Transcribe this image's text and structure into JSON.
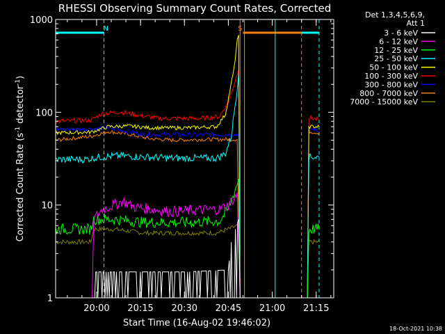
{
  "chart_data": {
    "type": "line",
    "title": "RHESSI Observing Summary Count Rates, Corrected",
    "xlabel": "Start Time (16-Aug-02 19:46:02)",
    "ylabel_main": "Corrected Count Rate (s",
    "ylabel_sup1": "-1",
    "ylabel_mid": " detector",
    "ylabel_sup2": "-1",
    "ylabel_end": ")",
    "yscale": "log",
    "ylim": [
      1,
      1000
    ],
    "xlim_minutes": [
      0,
      95
    ],
    "x_ticks": [
      {
        "label": "20:00",
        "minute": 14
      },
      {
        "label": "20:15",
        "minute": 29
      },
      {
        "label": "20:30",
        "minute": 44
      },
      {
        "label": "20:45",
        "minute": 59
      },
      {
        "label": "21:00",
        "minute": 74
      },
      {
        "label": "21:15",
        "minute": 89
      }
    ],
    "y_ticks": [
      {
        "label": "1",
        "value": 1
      },
      {
        "label": "10",
        "value": 10
      },
      {
        "label": "100",
        "value": 100
      },
      {
        "label": "1000",
        "value": 1000
      }
    ],
    "legend_title": [
      "Det 1,3,4,5,6,9,",
      "Att 1"
    ],
    "legend_position": "top-right",
    "series": [
      {
        "name": "3 - 6 keV",
        "color": "#ffffff",
        "points": [
          [
            0,
            1
          ],
          [
            12.5,
            1
          ],
          [
            13,
            1.9
          ],
          [
            30,
            1.9
          ],
          [
            44,
            1.9
          ],
          [
            59,
            2.0
          ],
          [
            60,
            4.0
          ],
          [
            62.5,
            7.0
          ],
          [
            63,
            1
          ],
          [
            86,
            1
          ],
          [
            95,
            1
          ]
        ]
      },
      {
        "name": "6 - 12 keV",
        "color": "#ff00ff",
        "points": [
          [
            0,
            1
          ],
          [
            12.5,
            1
          ],
          [
            13,
            7.0
          ],
          [
            16,
            9.0
          ],
          [
            20,
            10.0
          ],
          [
            23,
            11.0
          ],
          [
            27,
            9.5
          ],
          [
            33,
            9.0
          ],
          [
            40,
            8.5
          ],
          [
            48,
            8.8
          ],
          [
            56,
            9.0
          ],
          [
            59,
            10.0
          ],
          [
            62,
            13.0
          ],
          [
            63,
            1
          ],
          [
            86,
            1
          ],
          [
            95,
            1
          ]
        ]
      },
      {
        "name": "12 - 25 keV",
        "color": "#00ff00",
        "points": [
          [
            0,
            5.5
          ],
          [
            12,
            5.5
          ],
          [
            13,
            7.0
          ],
          [
            20,
            7.0
          ],
          [
            30,
            6.5
          ],
          [
            45,
            6.5
          ],
          [
            56,
            6.7
          ],
          [
            59,
            9.0
          ],
          [
            62,
            17.0
          ],
          [
            62.5,
            19.0
          ],
          [
            63,
            1
          ],
          [
            86,
            1
          ],
          [
            86.5,
            5.5
          ],
          [
            90,
            5.5
          ]
        ]
      },
      {
        "name": "25 - 50 keV",
        "color": "#00ffff",
        "points": [
          [
            0,
            31
          ],
          [
            10,
            31
          ],
          [
            15,
            33
          ],
          [
            22,
            34
          ],
          [
            30,
            33
          ],
          [
            40,
            32
          ],
          [
            55,
            32
          ],
          [
            58,
            36
          ],
          [
            60,
            55
          ],
          [
            62,
            180
          ],
          [
            62.5,
            280
          ],
          [
            63,
            1
          ],
          [
            86,
            1
          ],
          [
            86.5,
            33
          ],
          [
            90,
            33
          ]
        ]
      },
      {
        "name": "50 - 100 keV",
        "color": "#ffff00",
        "points": [
          [
            0,
            60
          ],
          [
            12,
            61
          ],
          [
            18,
            70
          ],
          [
            25,
            71
          ],
          [
            32,
            68
          ],
          [
            45,
            68
          ],
          [
            55,
            70
          ],
          [
            58,
            95
          ],
          [
            61,
            300
          ],
          [
            62,
            580
          ],
          [
            62.5,
            650
          ],
          [
            63,
            1
          ],
          [
            86,
            1
          ],
          [
            86.5,
            70
          ],
          [
            90,
            70
          ]
        ]
      },
      {
        "name": "100 - 300 keV",
        "color": "#ff0000",
        "points": [
          [
            0,
            80
          ],
          [
            12,
            82
          ],
          [
            16,
            97
          ],
          [
            22,
            101
          ],
          [
            28,
            93
          ],
          [
            35,
            86
          ],
          [
            50,
            86
          ],
          [
            56,
            90
          ],
          [
            59,
            130
          ],
          [
            61,
            200
          ],
          [
            62,
            260
          ],
          [
            62.5,
            300
          ],
          [
            63,
            1
          ],
          [
            86,
            1
          ],
          [
            86.5,
            88
          ],
          [
            90,
            83
          ]
        ]
      },
      {
        "name": "300 - 800 keV",
        "color": "#0000ff",
        "points": [
          [
            0,
            65
          ],
          [
            12,
            66
          ],
          [
            18,
            68
          ],
          [
            30,
            58
          ],
          [
            45,
            57
          ],
          [
            62.5,
            58
          ],
          [
            63,
            1
          ],
          [
            86,
            1
          ],
          [
            86.5,
            68
          ],
          [
            90,
            62
          ]
        ]
      },
      {
        "name": "800 - 7000 keV",
        "color": "#ff8000",
        "points": [
          [
            0,
            50
          ],
          [
            12,
            55
          ],
          [
            18,
            62
          ],
          [
            25,
            58
          ],
          [
            32,
            52
          ],
          [
            40,
            50
          ],
          [
            50,
            51
          ],
          [
            62,
            51
          ],
          [
            63,
            1
          ],
          [
            86,
            1
          ],
          [
            86.5,
            62
          ],
          [
            90,
            60
          ]
        ]
      },
      {
        "name": "7000 - 15000 keV",
        "color": "#808000",
        "points": [
          [
            0,
            4.0
          ],
          [
            12,
            4.0
          ],
          [
            13,
            5.5
          ],
          [
            20,
            5.5
          ],
          [
            30,
            5.0
          ],
          [
            45,
            5.0
          ],
          [
            55,
            5.0
          ],
          [
            59,
            5.5
          ],
          [
            62.5,
            6.0
          ],
          [
            63,
            1
          ],
          [
            86,
            1
          ],
          [
            86.5,
            4.0
          ],
          [
            90,
            4.0
          ]
        ]
      }
    ],
    "annotations": [
      {
        "label": "N",
        "color": "#00ffff",
        "minute": 16.5
      },
      {
        "label": "S",
        "color": "#ff8000",
        "minute": 62.5
      }
    ],
    "status_bars": [
      {
        "name": "night",
        "color": "#00ffff",
        "segments": [
          [
            0,
            16.5
          ],
          [
            75,
            90
          ]
        ]
      },
      {
        "name": "saa",
        "color": "#ff8000",
        "segments": [
          [
            64,
            84
          ]
        ]
      }
    ],
    "markers": [
      {
        "name": "night-start",
        "color": "#00ffff",
        "minute": 16.5,
        "style": "dashed"
      },
      {
        "name": "saa-start",
        "color": "#ff8000",
        "minute": 63,
        "style": "solid"
      },
      {
        "name": "saa-start-2",
        "color": "#ff8000",
        "minute": 64.5,
        "style": "solid"
      },
      {
        "name": "night-end",
        "color": "#00ffff",
        "minute": 75,
        "style": "solid"
      },
      {
        "name": "saa-end",
        "color": "#ff8000",
        "minute": 84,
        "style": "dashed"
      },
      {
        "name": "night-end-2",
        "color": "#00ffff",
        "minute": 90,
        "style": "dashed"
      }
    ]
  },
  "footer_date": "18-Oct-2021 10:38"
}
